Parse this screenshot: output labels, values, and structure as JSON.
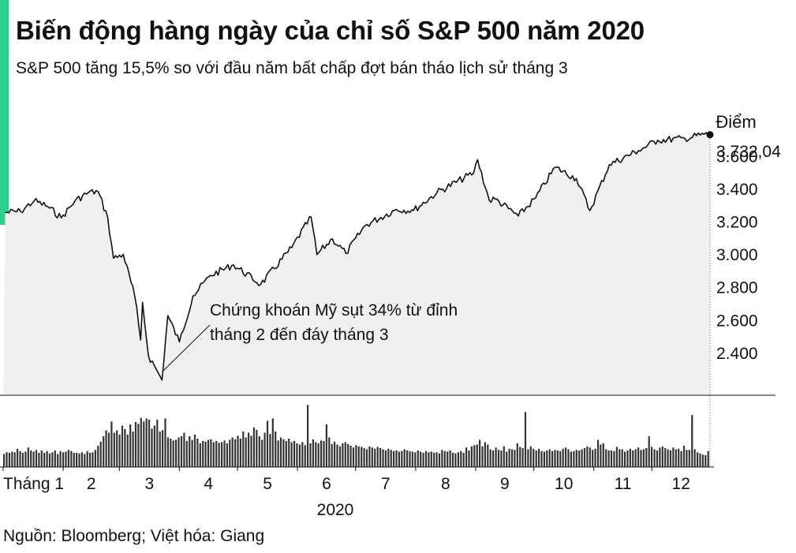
{
  "header": {
    "title": "Biến động hàng ngày của chỉ số S&P 500 năm 2020",
    "subtitle": "S&P 500 tăng 15,5% so với đầu năm bất chấp đợt bán tháo lịch sử tháng 3"
  },
  "footer": {
    "source": "Nguồn: Bloomberg; Việt hóa: Giang"
  },
  "colors": {
    "accent": "#2ecf8f",
    "line": "#111111",
    "area": "#f0f0f0",
    "bars": "#333333"
  },
  "chart_data": {
    "type": "line",
    "title": "Biến động hàng ngày của chỉ số S&P 500 năm 2020",
    "ylabel": "Điểm",
    "xlabel": "2020",
    "ylim": [
      2150,
      3880
    ],
    "yticks": [
      2400,
      2600,
      2800,
      3000,
      3200,
      3400,
      3600
    ],
    "ytick_labels": [
      "2.400",
      "2.600",
      "2.800",
      "3.000",
      "3.200",
      "3.400",
      "3.600"
    ],
    "month_labels": [
      "Tháng 1",
      "2",
      "3",
      "4",
      "5",
      "6",
      "7",
      "8",
      "9",
      "10",
      "11",
      "12"
    ],
    "last_value": 3732.04,
    "last_value_label": "3.732,04",
    "annotation": {
      "line1": "Chứng khoán Mỹ sụt 34% từ đỉnh",
      "line2": "tháng 2 đến đáy tháng 3"
    },
    "series": [
      {
        "dates": [
          "2020-01-02",
          "2020-01-10",
          "2020-01-17",
          "2020-01-24",
          "2020-01-31",
          "2020-02-07",
          "2020-02-14",
          "2020-02-19",
          "2020-02-24",
          "2020-02-27",
          "2020-03-03",
          "2020-03-09",
          "2020-03-12",
          "2020-03-13",
          "2020-03-16",
          "2020-03-20",
          "2020-03-23",
          "2020-03-26",
          "2020-04-01",
          "2020-04-08",
          "2020-04-17",
          "2020-04-29",
          "2020-05-13",
          "2020-05-29",
          "2020-06-08",
          "2020-06-11",
          "2020-06-19",
          "2020-06-26",
          "2020-07-06",
          "2020-07-22",
          "2020-07-31",
          "2020-08-12",
          "2020-08-31",
          "2020-09-02",
          "2020-09-08",
          "2020-09-11",
          "2020-09-23",
          "2020-10-02",
          "2020-10-12",
          "2020-10-23",
          "2020-10-30",
          "2020-11-09",
          "2020-11-24",
          "2020-12-04",
          "2020-12-18",
          "2020-12-28",
          "2020-12-31"
        ],
        "values": [
          3258,
          3265,
          3330,
          3295,
          3226,
          3328,
          3380,
          3386,
          3226,
          2979,
          3003,
          2747,
          2481,
          2711,
          2386,
          2305,
          2237,
          2630,
          2470,
          2750,
          2875,
          2939,
          2820,
          3044,
          3232,
          3002,
          3098,
          3009,
          3180,
          3277,
          3271,
          3380,
          3500,
          3580,
          3332,
          3341,
          3237,
          3348,
          3534,
          3465,
          3270,
          3550,
          3635,
          3699,
          3709,
          3735,
          3732.04
        ]
      }
    ],
    "volume": {
      "unit": "relative",
      "values": [
        0.22,
        0.25,
        0.24,
        0.26,
        0.25,
        0.31,
        0.27,
        0.24,
        0.26,
        0.33,
        0.28,
        0.26,
        0.29,
        0.24,
        0.28,
        0.24,
        0.27,
        0.23,
        0.25,
        0.28,
        0.22,
        0.27,
        0.25,
        0.26,
        0.29,
        0.27,
        0.24,
        0.24,
        0.23,
        0.25,
        0.22,
        0.27,
        0.24,
        0.25,
        0.29,
        0.36,
        0.43,
        0.52,
        0.62,
        0.58,
        0.77,
        0.58,
        0.62,
        0.55,
        0.7,
        0.64,
        0.55,
        0.72,
        0.6,
        0.76,
        0.73,
        0.83,
        0.77,
        0.82,
        0.8,
        0.65,
        0.7,
        0.8,
        0.6,
        0.62,
        0.82,
        0.5,
        0.48,
        0.45,
        0.46,
        0.5,
        0.52,
        0.58,
        0.44,
        0.52,
        0.46,
        0.55,
        0.48,
        0.4,
        0.44,
        0.43,
        0.46,
        0.47,
        0.42,
        0.44,
        0.41,
        0.42,
        0.45,
        0.4,
        0.46,
        0.5,
        0.47,
        0.53,
        0.48,
        0.6,
        0.5,
        0.58,
        0.53,
        0.67,
        0.63,
        0.52,
        0.46,
        0.58,
        0.78,
        0.56,
        0.82,
        0.6,
        0.45,
        0.5,
        0.47,
        0.44,
        0.48,
        0.42,
        0.44,
        0.4,
        0.38,
        0.42,
        0.37,
        1.05,
        0.4,
        0.47,
        0.42,
        0.4,
        0.45,
        0.44,
        0.72,
        0.5,
        0.39,
        0.43,
        0.38,
        0.35,
        0.4,
        0.42,
        0.39,
        0.36,
        0.33,
        0.37,
        0.35,
        0.34,
        0.32,
        0.3,
        0.35,
        0.33,
        0.31,
        0.34,
        0.32,
        0.3,
        0.28,
        0.31,
        0.29,
        0.27,
        0.28,
        0.26,
        0.27,
        0.3,
        0.28,
        0.27,
        0.26,
        0.25,
        0.28,
        0.26,
        0.24,
        0.27,
        0.25,
        0.26,
        0.24,
        0.25,
        0.23,
        0.29,
        0.27,
        0.26,
        0.28,
        0.24,
        0.23,
        0.25,
        0.27,
        0.24,
        0.33,
        0.28,
        0.35,
        0.37,
        0.38,
        0.46,
        0.35,
        0.42,
        0.38,
        0.3,
        0.28,
        0.33,
        0.29,
        0.28,
        0.35,
        0.26,
        0.31,
        0.3,
        0.29,
        0.4,
        0.34,
        0.32,
        0.93,
        0.3,
        0.35,
        0.31,
        0.28,
        0.31,
        0.27,
        0.26,
        0.28,
        0.3,
        0.27,
        0.29,
        0.28,
        0.27,
        0.31,
        0.33,
        0.3,
        0.26,
        0.27,
        0.29,
        0.28,
        0.3,
        0.32,
        0.35,
        0.33,
        0.29,
        0.31,
        0.46,
        0.38,
        0.4,
        0.3,
        0.28,
        0.28,
        0.27,
        0.34,
        0.3,
        0.3,
        0.26,
        0.28,
        0.31,
        0.28,
        0.3,
        0.33,
        0.29,
        0.3,
        0.32,
        0.52,
        0.34,
        0.3,
        0.28,
        0.33,
        0.35,
        0.32,
        0.3,
        0.28,
        0.33,
        0.3,
        0.31,
        0.27,
        0.36,
        0.29,
        0.29,
        0.88,
        0.3,
        0.25,
        0.23,
        0.21,
        0.2,
        0.27
      ]
    }
  }
}
